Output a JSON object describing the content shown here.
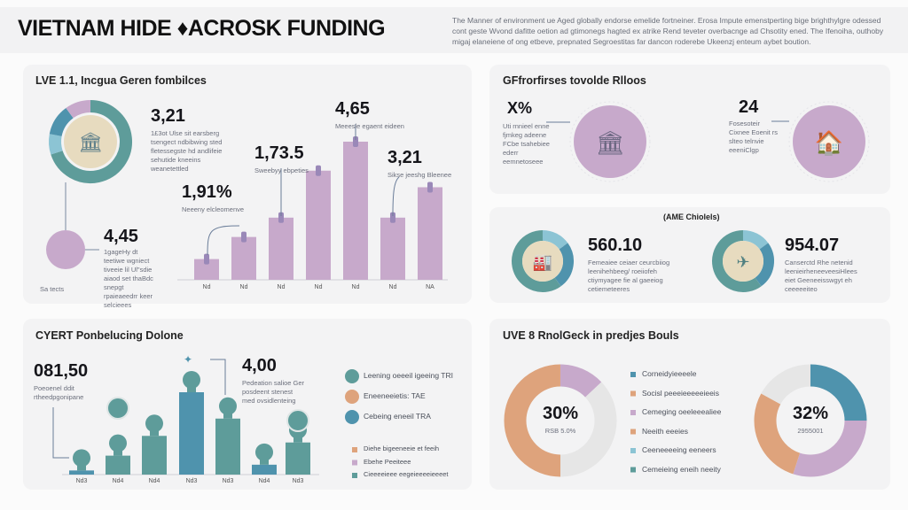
{
  "header": {
    "title": "VIETNAM HIDE ♦ACROSK FUNDING",
    "intro": "The Manner of environment ue Aged globally endorse emelide fortneiner. Erosa Impute emenstperting bige brighthylgre odessed cont geste Wvond dafitte oetion ad gtimonegs hagted ex atrike Rend teveter overbacnge ad Chsotity ened. The Ifenoiha, outhoby migaj elaneiene of ong etbeve, prepnated Segroestitas far dancon roderebe Ukeenzj enteum aybet boution."
  },
  "colors": {
    "teal": "#5e9c9a",
    "blue": "#4f93ad",
    "light_blue": "#8cc4d4",
    "purple": "#c7a9cb",
    "tan": "#e7dbbf",
    "orange": "#dea37c",
    "gray": "#e6e6e6"
  },
  "panel1": {
    "title": "LVE 1.1, Incgua Geren fombilces",
    "donut_value": "3,21",
    "donut_text": "1£3ot Ulse sit earsberg tsengect ndbibwing sted fletessegste hd andlifeie sehutide kneeins weanetettled",
    "circle_value": "4,45",
    "circle_text": "1gageHy dt teetiwe wgniect tiveeie lil Ul\"sdie aiaod set thaBdc snepgt rpaieaeedrr keer selcieees",
    "circle_label": "Sa tects",
    "icon": "building-icon"
  },
  "chart_data": [
    {
      "type": "bar",
      "categories": [
        "Nd",
        "Nd",
        "Nd",
        "Nd",
        "Nd",
        "Nd",
        "NA"
      ],
      "values": [
        15,
        31,
        45,
        79,
        100,
        45,
        67
      ],
      "annotations": [
        {
          "label": "1,91%",
          "text": "Neeeny elcleomenve",
          "bar": 0
        },
        {
          "label": "1,73.5",
          "text": "Sweebyy ebpeties",
          "bar": 2
        },
        {
          "label": "4,65",
          "text": "Meeesle egaent eideen",
          "bar": 4
        },
        {
          "label": "3,21",
          "text": "Sikse jeeshg Bleenee",
          "bar": 5
        }
      ]
    },
    {
      "type": "bar",
      "categories": [
        "Nd3",
        "Nd4",
        "Nd4",
        "Nd3",
        "Nd3",
        "Nd4",
        "Nd3"
      ],
      "values": [
        5,
        23,
        47,
        100,
        68,
        12,
        39
      ],
      "annotations": [
        {
          "label": "081,50",
          "text": "Poeoenel ddit rtheedpgonipane"
        },
        {
          "label": "4,00",
          "text": "Pedeation salioe Ger posdeent stenest med ovsidlenteing"
        }
      ]
    },
    {
      "type": "pie",
      "center_label": "30%",
      "center_sub": "RSB 5.0%",
      "slices": [
        {
          "color": "orange",
          "value": 50
        },
        {
          "color": "purple",
          "value": 13
        },
        {
          "color": "gray",
          "value": 37
        }
      ]
    },
    {
      "type": "pie",
      "center_label": "32%",
      "center_sub": "2955001",
      "slices": [
        {
          "color": "blue",
          "value": 25
        },
        {
          "color": "purple",
          "value": 30
        },
        {
          "color": "orange",
          "value": 28
        },
        {
          "color": "gray",
          "value": 17
        }
      ]
    }
  ],
  "panel2": {
    "title": "GFfrorfirses tovolde Rlloos",
    "left_value": "X%",
    "left_text": "Uti rnnieel enne fjmkeg adeene FCbe tsahebiee ederr eemnetoseee",
    "right_value": "24",
    "right_text": "Fosesoteir Cixnee Eoenit rs slteo telnvie eeeniClgp",
    "left_icon": "bank-icon",
    "right_icon": "house-icon"
  },
  "panel3": {
    "title": "(AME Chiolels)",
    "left_value": "560.10",
    "left_text": "Femeaiee ceiaer ceurcbiiog leenihehbeeg/ roeiiofeh ctiymyagee fie al gaeeiog cetiemeteeres",
    "right_value": "954.07",
    "right_text": "Canserctd Rhe netenid leenieirheneeveesiHlees eiet Geeneeisswgyt eh ceeeeeiteo",
    "left_icon": "factory-icon",
    "right_icon": "plane-icon"
  },
  "panel4": {
    "title": "CYERT Ponbelucing Dolone",
    "legend": [
      {
        "label": "Leening oeeeil igeeing TRI",
        "color": "teal"
      },
      {
        "label": "Eneeneeietis: TAE",
        "color": "orange"
      },
      {
        "label": "Cebeing eneeil TRA",
        "color": "blue"
      }
    ],
    "legend2": [
      {
        "label": "Diehe bigeeneeie et feeih",
        "color": "orange"
      },
      {
        "label": "Ebehe Peeiteee",
        "color": "purple"
      },
      {
        "label": "Cieeeeieee eegeieeeeieeeet",
        "color": "teal"
      }
    ]
  },
  "panel5": {
    "title": "UVE 8 RnolGeck in predjes Bouls",
    "legend": [
      {
        "label": "Corneidyieeeele",
        "color": "blue"
      },
      {
        "label": "Socisl peeeieeeeeieeis",
        "color": "orange"
      },
      {
        "label": "Cemeging oeeleeealiee",
        "color": "purple"
      },
      {
        "label": "Neeith eeeies",
        "color": "orange"
      },
      {
        "label": "Ceeneeeeing eeneers",
        "color": "light_blue"
      },
      {
        "label": "Cemeieing eneih neeity",
        "color": "teal"
      }
    ]
  }
}
